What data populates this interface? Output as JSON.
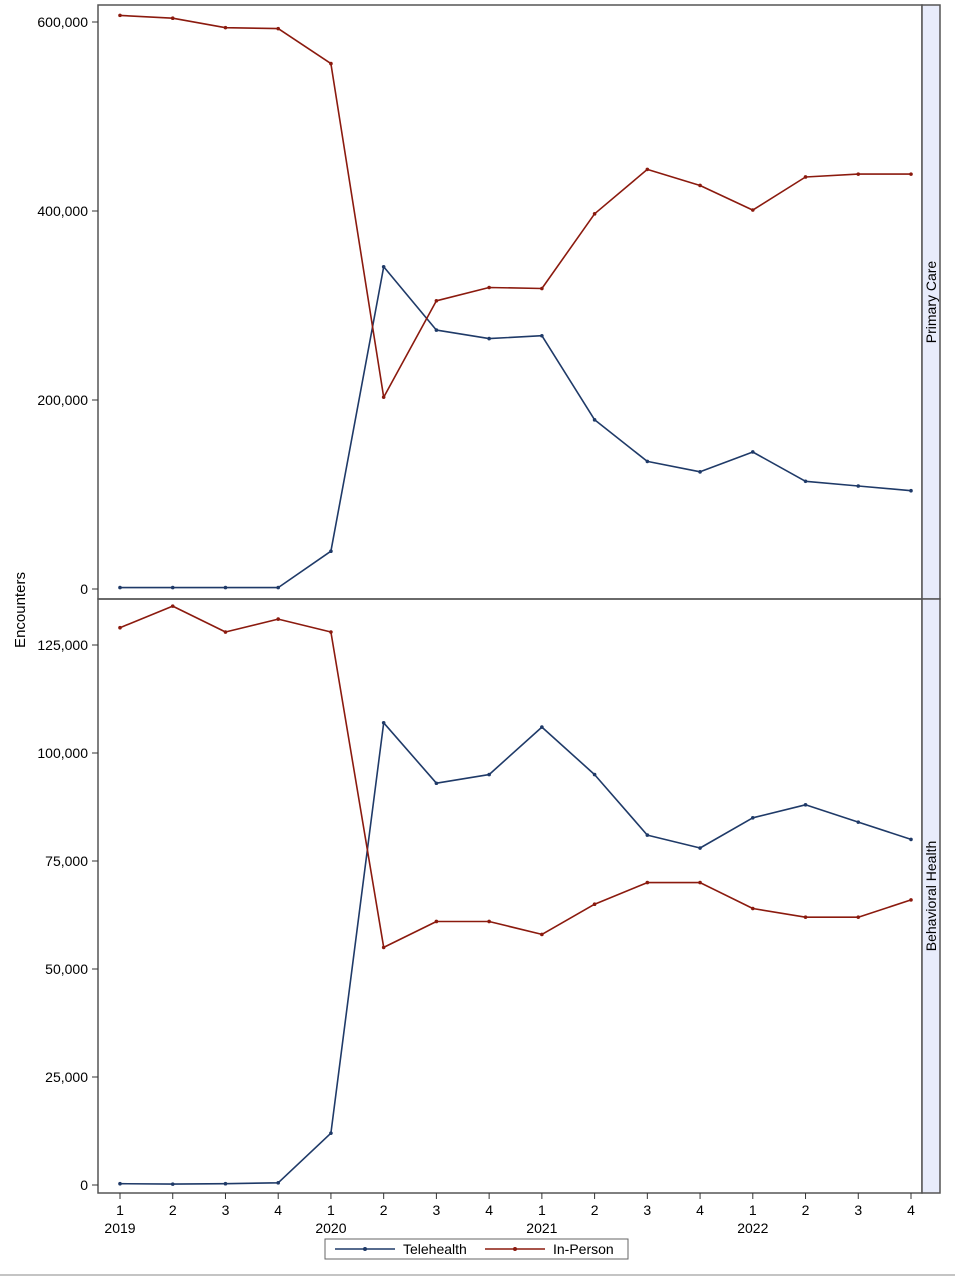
{
  "chart_data": {
    "type": "line",
    "ylabel": "Encounters",
    "x_quarters": [
      "1",
      "2",
      "3",
      "4",
      "1",
      "2",
      "3",
      "4",
      "1",
      "2",
      "3",
      "4",
      "1",
      "2",
      "3",
      "4"
    ],
    "x_years": [
      {
        "label": "2019",
        "at_index": 0
      },
      {
        "label": "2020",
        "at_index": 4
      },
      {
        "label": "2021",
        "at_index": 8
      },
      {
        "label": "2022",
        "at_index": 12
      }
    ],
    "legend": {
      "position": "bottom-center",
      "entries": [
        {
          "name": "Telehealth",
          "color": "#1f3a68"
        },
        {
          "name": "In-Person",
          "color": "#8b1a0e"
        }
      ]
    },
    "panels": [
      {
        "strip_label": "Primary Care",
        "ylim": [
          0,
          620000
        ],
        "yticks": [
          0,
          200000,
          400000,
          600000
        ],
        "ytick_labels": [
          "0",
          "200,000",
          "400,000",
          "600,000"
        ],
        "series": [
          {
            "name": "Telehealth",
            "values": [
              1500,
              1500,
              1500,
              1500,
              40000,
              341000,
              274000,
              265000,
              268000,
              179000,
              135000,
              124000,
              145000,
              114000,
              109000,
              104000
            ]
          },
          {
            "name": "In-Person",
            "values": [
              607000,
              604000,
              594000,
              593000,
              556000,
              203000,
              305000,
              319000,
              318000,
              397000,
              444000,
              427000,
              401000,
              436000,
              439000,
              439000
            ]
          }
        ]
      },
      {
        "strip_label": "Behavioral Health",
        "ylim": [
          0,
          134000
        ],
        "yticks": [
          0,
          25000,
          50000,
          75000,
          100000,
          125000
        ],
        "ytick_labels": [
          "0",
          "25,000",
          "50,000",
          "75,000",
          "100,000",
          "125,000"
        ],
        "series": [
          {
            "name": "Telehealth",
            "values": [
              300,
              200,
              300,
              500,
              12000,
              107000,
              93000,
              95000,
              106000,
              95000,
              81000,
              78000,
              85000,
              88000,
              84000,
              80000
            ]
          },
          {
            "name": "In-Person",
            "values": [
              129000,
              134000,
              128000,
              131000,
              128000,
              55000,
              61000,
              61000,
              58000,
              65000,
              70000,
              70000,
              64000,
              62000,
              62000,
              66000
            ]
          }
        ]
      }
    ]
  }
}
